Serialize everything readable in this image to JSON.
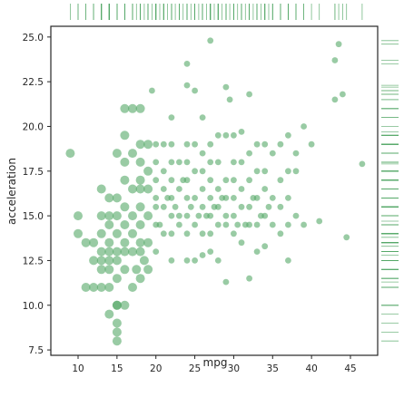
{
  "chart_data": {
    "type": "scatter",
    "title": "",
    "xlabel": "mpg",
    "ylabel": "acceleration",
    "xlim": [
      6.5,
      48.5
    ],
    "ylim": [
      7.2,
      25.6
    ],
    "x_ticks": [
      10,
      15,
      20,
      25,
      30,
      35,
      40,
      45
    ],
    "y_ticks": [
      7.5,
      10.0,
      12.5,
      15.0,
      17.5,
      20.0,
      22.5,
      25.0
    ],
    "y_tick_labels": [
      "7.5",
      "10.0",
      "12.5",
      "15.0",
      "17.5",
      "20.0",
      "22.5",
      "25.0"
    ],
    "grid": false,
    "marginal_rugs": [
      "top",
      "right"
    ],
    "colors": {
      "point": "#55a868",
      "axes": "#262626"
    },
    "series": [
      {
        "points": [
          [
            9,
            18.5
          ],
          [
            10,
            15
          ],
          [
            10,
            14
          ],
          [
            11,
            13.5
          ],
          [
            11,
            11
          ],
          [
            12,
            11
          ],
          [
            12,
            13.5
          ],
          [
            12,
            12.5
          ],
          [
            13,
            12
          ],
          [
            13,
            11
          ],
          [
            13,
            12.5
          ],
          [
            13,
            13
          ],
          [
            13,
            14
          ],
          [
            13,
            15
          ],
          [
            13,
            16.5
          ],
          [
            14,
            11
          ],
          [
            14,
            12
          ],
          [
            14,
            13
          ],
          [
            14,
            13.5
          ],
          [
            14,
            14.5
          ],
          [
            14,
            15
          ],
          [
            14,
            16
          ],
          [
            14,
            9.5
          ],
          [
            14,
            12.5
          ],
          [
            15,
            8.5
          ],
          [
            15,
            8
          ],
          [
            15,
            9
          ],
          [
            15,
            10
          ],
          [
            15,
            11.5
          ],
          [
            15,
            13
          ],
          [
            15,
            14
          ],
          [
            15,
            15
          ],
          [
            15,
            16
          ],
          [
            15,
            18.5
          ],
          [
            15,
            10
          ],
          [
            15,
            12.5
          ],
          [
            16,
            10
          ],
          [
            16,
            12
          ],
          [
            16,
            13
          ],
          [
            16,
            13.5
          ],
          [
            16,
            15.5
          ],
          [
            16,
            17
          ],
          [
            16,
            18
          ],
          [
            16,
            19.5
          ],
          [
            16,
            21
          ],
          [
            16,
            14.5
          ],
          [
            17,
            11
          ],
          [
            17,
            13
          ],
          [
            17,
            14
          ],
          [
            17,
            15
          ],
          [
            17,
            16.5
          ],
          [
            17,
            18.5
          ],
          [
            17,
            21
          ],
          [
            17.5,
            12
          ],
          [
            18,
            11.5
          ],
          [
            18,
            13
          ],
          [
            18,
            13.5
          ],
          [
            18,
            14.5
          ],
          [
            18,
            15.5
          ],
          [
            18,
            16.5
          ],
          [
            18,
            17
          ],
          [
            18,
            18
          ],
          [
            18,
            19
          ],
          [
            18,
            21
          ],
          [
            18.5,
            12.5
          ],
          [
            19,
            12
          ],
          [
            19,
            13.5
          ],
          [
            19,
            15
          ],
          [
            19,
            16.5
          ],
          [
            19,
            17.5
          ],
          [
            19,
            19
          ],
          [
            19.5,
            22
          ],
          [
            20,
            13
          ],
          [
            20,
            14.5
          ],
          [
            20,
            15.5
          ],
          [
            20,
            16
          ],
          [
            20,
            17
          ],
          [
            20,
            18
          ],
          [
            20,
            19
          ],
          [
            20.5,
            14.5
          ],
          [
            21,
            14
          ],
          [
            21,
            15.5
          ],
          [
            21,
            16.5
          ],
          [
            21,
            17.5
          ],
          [
            21,
            19
          ],
          [
            21.5,
            16
          ],
          [
            22,
            12.5
          ],
          [
            22,
            14
          ],
          [
            22,
            15
          ],
          [
            22,
            16
          ],
          [
            22,
            17
          ],
          [
            22,
            18
          ],
          [
            22,
            19
          ],
          [
            22,
            20.5
          ],
          [
            22.5,
            15.5
          ],
          [
            23,
            14.5
          ],
          [
            23,
            16.5
          ],
          [
            23,
            18
          ],
          [
            23,
            15
          ],
          [
            23.5,
            17
          ],
          [
            24,
            12.5
          ],
          [
            24,
            14
          ],
          [
            24,
            15
          ],
          [
            24,
            16
          ],
          [
            24,
            17
          ],
          [
            24,
            18
          ],
          [
            24,
            19
          ],
          [
            24,
            22.3
          ],
          [
            24,
            23.5
          ],
          [
            24.5,
            15.5
          ],
          [
            25,
            12.5
          ],
          [
            25,
            14.5
          ],
          [
            25,
            16
          ],
          [
            25,
            17.5
          ],
          [
            25,
            19
          ],
          [
            25,
            22
          ],
          [
            25.5,
            15
          ],
          [
            26,
            12.8
          ],
          [
            26,
            14
          ],
          [
            26,
            15.5
          ],
          [
            26,
            16.5
          ],
          [
            26,
            17.5
          ],
          [
            26,
            18.5
          ],
          [
            26,
            20.5
          ],
          [
            26.5,
            15
          ],
          [
            27,
            13
          ],
          [
            27,
            14
          ],
          [
            27,
            15
          ],
          [
            27,
            16
          ],
          [
            27,
            17
          ],
          [
            27,
            18
          ],
          [
            27,
            19
          ],
          [
            27,
            24.8
          ],
          [
            27.5,
            15.5
          ],
          [
            28,
            12.5
          ],
          [
            28,
            14.5
          ],
          [
            28,
            15.5
          ],
          [
            28,
            16.5
          ],
          [
            28,
            18
          ],
          [
            28,
            19.5
          ],
          [
            28.5,
            16
          ],
          [
            29,
            11.3
          ],
          [
            29,
            14.5
          ],
          [
            29,
            15
          ],
          [
            29,
            16
          ],
          [
            29,
            17
          ],
          [
            29,
            19.5
          ],
          [
            29,
            22.2
          ],
          [
            29.5,
            21.5
          ],
          [
            30,
            14
          ],
          [
            30,
            15
          ],
          [
            30,
            16
          ],
          [
            30,
            17
          ],
          [
            30,
            18
          ],
          [
            30,
            19.5
          ],
          [
            30.5,
            14.5
          ],
          [
            31,
            13.5
          ],
          [
            31,
            15.5
          ],
          [
            31,
            16.5
          ],
          [
            31,
            18
          ],
          [
            31,
            19.7
          ],
          [
            31.5,
            14.5
          ],
          [
            32,
            11.5
          ],
          [
            32,
            14.5
          ],
          [
            32,
            15.5
          ],
          [
            32,
            17
          ],
          [
            32,
            18.5
          ],
          [
            32,
            21.8
          ],
          [
            32.5,
            16
          ],
          [
            33,
            13
          ],
          [
            33,
            14.5
          ],
          [
            33,
            16
          ],
          [
            33,
            17.5
          ],
          [
            33,
            19
          ],
          [
            33.5,
            15
          ],
          [
            34,
            13.3
          ],
          [
            34,
            15
          ],
          [
            34,
            16.5
          ],
          [
            34,
            17.5
          ],
          [
            34,
            19
          ],
          [
            34.5,
            15.5
          ],
          [
            35,
            14.5
          ],
          [
            35,
            16
          ],
          [
            35,
            18.5
          ],
          [
            36,
            14
          ],
          [
            36,
            15.5
          ],
          [
            36,
            17
          ],
          [
            36,
            19
          ],
          [
            37,
            12.5
          ],
          [
            37,
            14.5
          ],
          [
            37,
            16
          ],
          [
            37,
            17.5
          ],
          [
            37,
            19.5
          ],
          [
            38,
            15
          ],
          [
            38,
            17.5
          ],
          [
            38,
            18.5
          ],
          [
            39,
            20
          ],
          [
            39,
            14.5
          ],
          [
            41,
            14.7
          ],
          [
            43,
            21.5
          ],
          [
            43,
            23.7
          ],
          [
            43.5,
            24.6
          ],
          [
            44,
            21.8
          ],
          [
            44.5,
            13.8
          ],
          [
            46.5,
            17.9
          ],
          [
            40,
            19
          ]
        ]
      }
    ]
  }
}
